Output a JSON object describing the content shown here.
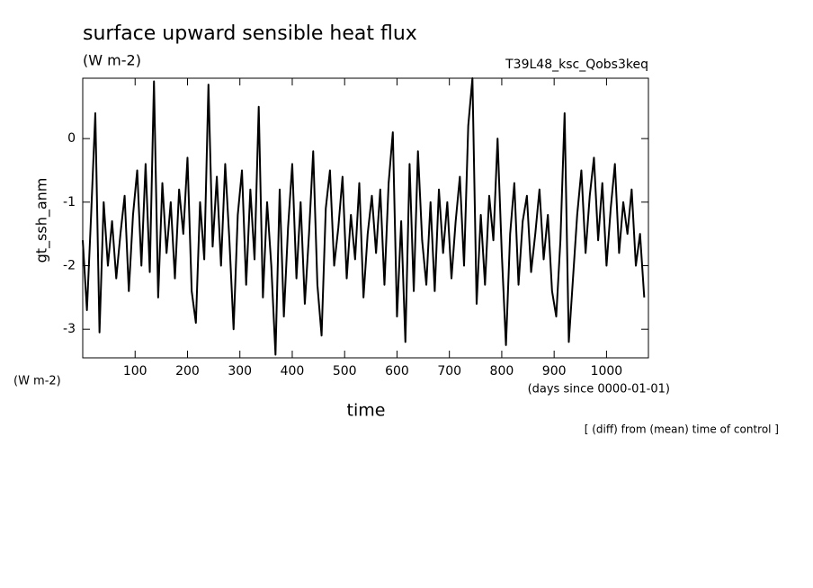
{
  "chart_data": {
    "type": "line",
    "title": "surface upward sensible heat flux",
    "subtitle": "(W m-2)",
    "run_label": "T39L48_ksc_Qobs3keq",
    "y_label": "gt_ssh_anm",
    "y_units": "(W m-2)",
    "x_label": "time",
    "x_units": "(days since 0000-01-01)",
    "note": "[ (diff) from (mean) time of control ]",
    "xlim": [
      0,
      1080
    ],
    "ylim": [
      -3.45,
      0.95
    ],
    "xticks": [
      100,
      200,
      300,
      400,
      500,
      600,
      700,
      800,
      900,
      1000
    ],
    "yticks": [
      -3,
      -2,
      -1,
      0
    ],
    "x": [
      0,
      8,
      16,
      24,
      32,
      40,
      48,
      56,
      64,
      72,
      80,
      88,
      96,
      104,
      112,
      120,
      128,
      136,
      144,
      152,
      160,
      168,
      176,
      184,
      192,
      200,
      208,
      216,
      224,
      232,
      240,
      248,
      256,
      264,
      272,
      280,
      288,
      296,
      304,
      312,
      320,
      328,
      336,
      344,
      352,
      360,
      368,
      376,
      384,
      392,
      400,
      408,
      416,
      424,
      432,
      440,
      448,
      456,
      464,
      472,
      480,
      488,
      496,
      504,
      512,
      520,
      528,
      536,
      544,
      552,
      560,
      568,
      576,
      584,
      592,
      600,
      608,
      616,
      624,
      632,
      640,
      648,
      656,
      664,
      672,
      680,
      688,
      696,
      704,
      712,
      720,
      728,
      736,
      744,
      752,
      760,
      768,
      776,
      784,
      792,
      800,
      808,
      816,
      824,
      832,
      840,
      848,
      856,
      864,
      872,
      880,
      888,
      896,
      904,
      912,
      920,
      928,
      936,
      944,
      952,
      960,
      968,
      976,
      984,
      992,
      1000,
      1008,
      1016,
      1024,
      1032,
      1040,
      1048,
      1056,
      1064,
      1072
    ],
    "series": [
      {
        "color": "#000000",
        "values": [
          -1.6,
          -2.7,
          -1.2,
          0.4,
          -3.05,
          -1.0,
          -2.0,
          -1.3,
          -2.2,
          -1.5,
          -0.9,
          -2.4,
          -1.2,
          -0.5,
          -2.0,
          -0.4,
          -2.1,
          0.9,
          -2.5,
          -0.7,
          -1.8,
          -1.0,
          -2.2,
          -0.8,
          -1.5,
          -0.3,
          -2.4,
          -2.9,
          -1.0,
          -1.9,
          0.85,
          -1.7,
          -0.6,
          -2.0,
          -0.4,
          -1.6,
          -3.0,
          -1.2,
          -0.5,
          -2.3,
          -0.8,
          -1.9,
          0.5,
          -2.5,
          -1.0,
          -2.0,
          -3.4,
          -0.8,
          -2.8,
          -1.4,
          -0.4,
          -2.2,
          -1.0,
          -2.6,
          -1.5,
          -0.2,
          -2.3,
          -3.1,
          -1.1,
          -0.5,
          -2.0,
          -1.4,
          -0.6,
          -2.2,
          -1.2,
          -1.9,
          -0.7,
          -2.5,
          -1.5,
          -0.9,
          -1.8,
          -0.8,
          -2.3,
          -0.7,
          0.1,
          -2.8,
          -1.3,
          -3.2,
          -0.4,
          -2.4,
          -0.2,
          -1.6,
          -2.3,
          -1.0,
          -2.4,
          -0.8,
          -1.8,
          -1.0,
          -2.2,
          -1.3,
          -0.6,
          -2.0,
          0.2,
          0.95,
          -2.6,
          -1.2,
          -2.3,
          -0.9,
          -1.6,
          0.0,
          -1.8,
          -3.25,
          -1.5,
          -0.7,
          -2.3,
          -1.3,
          -0.9,
          -2.1,
          -1.5,
          -0.8,
          -1.9,
          -1.2,
          -2.4,
          -2.8,
          -1.6,
          0.4,
          -3.2,
          -2.2,
          -1.2,
          -0.5,
          -1.8,
          -0.9,
          -0.3,
          -1.6,
          -0.7,
          -2.0,
          -1.1,
          -0.4,
          -1.8,
          -1.0,
          -1.5,
          -0.8,
          -2.0,
          -1.5,
          -2.5
        ]
      }
    ]
  }
}
